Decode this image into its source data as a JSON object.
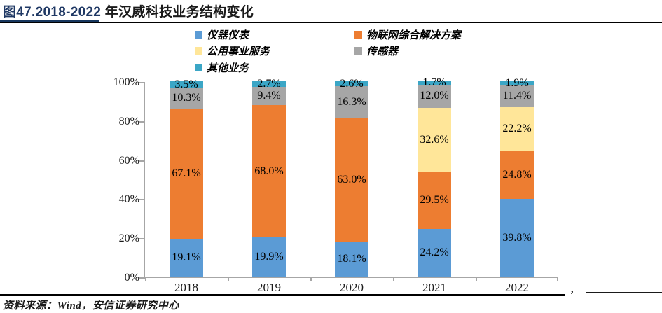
{
  "header": {
    "figure_label": "图47.2018-2022",
    "title_text": " 年汉威科技业务结构变化"
  },
  "footer": {
    "source": "资料来源：Wind，安信证券研究中心",
    "note_comma": "，"
  },
  "chart_data": {
    "type": "bar",
    "stacked": true,
    "title": "2018-2022 年汉威科技业务结构变化",
    "categories": [
      "2018",
      "2019",
      "2020",
      "2021",
      "2022"
    ],
    "series": [
      {
        "name": "仪器仪表",
        "color": "#5B9BD5",
        "values": [
          19.1,
          19.9,
          18.1,
          24.2,
          39.8
        ],
        "labels": [
          "19.1%",
          "19.9%",
          "18.1%",
          "24.2%",
          "39.8%"
        ]
      },
      {
        "name": "物联网综合解决方案",
        "color": "#ED7D31",
        "values": [
          67.1,
          68.0,
          63.0,
          29.5,
          24.8
        ],
        "labels": [
          "67.1%",
          "68.0%",
          "63.0%",
          "29.5%",
          "24.8%"
        ]
      },
      {
        "name": "公用事业服务",
        "color": "#FFE699",
        "values": [
          0,
          0,
          0,
          32.6,
          22.2
        ],
        "labels": [
          "",
          "",
          "",
          "32.6%",
          "22.2%"
        ]
      },
      {
        "name": "传感器",
        "color": "#A6A6A6",
        "values": [
          10.3,
          9.4,
          16.3,
          12.0,
          11.4
        ],
        "labels": [
          "10.3%",
          "9.4%",
          "16.3%",
          "12.0%",
          "11.4%"
        ]
      },
      {
        "name": "其他业务",
        "color": "#3BA6C6",
        "values": [
          3.5,
          2.7,
          2.6,
          1.7,
          1.9
        ],
        "labels": [
          "3.5%",
          "2.7%",
          "2.6%",
          "1.7%",
          "1.9%"
        ]
      }
    ],
    "yticks": [
      "0%",
      "20%",
      "40%",
      "60%",
      "80%",
      "100%"
    ],
    "ylim": [
      0,
      100
    ],
    "unit": "%",
    "legend_position": "top",
    "grid": false
  }
}
